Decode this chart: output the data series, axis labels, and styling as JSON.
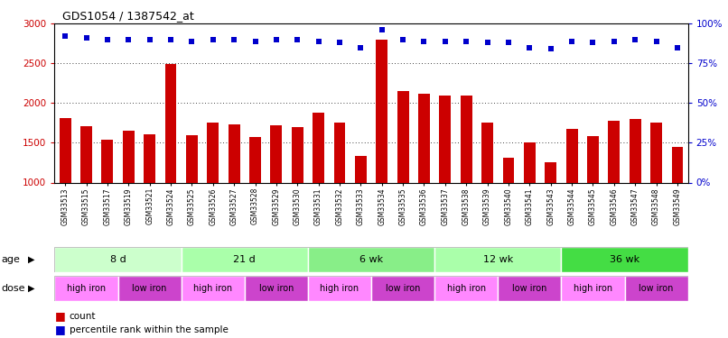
{
  "title": "GDS1054 / 1387542_at",
  "samples": [
    "GSM33513",
    "GSM33515",
    "GSM33517",
    "GSM33519",
    "GSM33521",
    "GSM33524",
    "GSM33525",
    "GSM33526",
    "GSM33527",
    "GSM33528",
    "GSM33529",
    "GSM33530",
    "GSM33531",
    "GSM33532",
    "GSM33533",
    "GSM33534",
    "GSM33535",
    "GSM33536",
    "GSM33537",
    "GSM33538",
    "GSM33539",
    "GSM33540",
    "GSM33541",
    "GSM33543",
    "GSM33544",
    "GSM33545",
    "GSM33546",
    "GSM33547",
    "GSM33548",
    "GSM33549"
  ],
  "counts": [
    1810,
    1710,
    1540,
    1650,
    1610,
    2490,
    1600,
    1750,
    1730,
    1570,
    1720,
    1700,
    1880,
    1750,
    1330,
    2800,
    2150,
    2120,
    2100,
    2090,
    1750,
    1310,
    1510,
    1260,
    1680,
    1590,
    1780,
    1800,
    1760,
    1450
  ],
  "percentile": [
    92,
    91,
    90,
    90,
    90,
    90,
    89,
    90,
    90,
    89,
    90,
    90,
    89,
    88,
    85,
    96,
    90,
    89,
    89,
    89,
    88,
    88,
    85,
    84,
    89,
    88,
    89,
    90,
    89,
    85
  ],
  "bar_color": "#CC0000",
  "dot_color": "#0000CC",
  "ylim_left": [
    1000,
    3000
  ],
  "ylim_right": [
    0,
    100
  ],
  "yticks_left": [
    1000,
    1500,
    2000,
    2500,
    3000
  ],
  "yticks_right": [
    0,
    25,
    50,
    75,
    100
  ],
  "age_groups": [
    {
      "label": "8 d",
      "start": 0,
      "end": 6,
      "color": "#ccffcc"
    },
    {
      "label": "21 d",
      "start": 6,
      "end": 12,
      "color": "#aaffaa"
    },
    {
      "label": "6 wk",
      "start": 12,
      "end": 18,
      "color": "#88ee88"
    },
    {
      "label": "12 wk",
      "start": 18,
      "end": 24,
      "color": "#aaffaa"
    },
    {
      "label": "36 wk",
      "start": 24,
      "end": 30,
      "color": "#44dd44"
    }
  ],
  "dose_groups": [
    {
      "label": "high iron",
      "start": 0,
      "end": 3,
      "color": "#ff88ff"
    },
    {
      "label": "low iron",
      "start": 3,
      "end": 6,
      "color": "#cc44cc"
    },
    {
      "label": "high iron",
      "start": 6,
      "end": 9,
      "color": "#ff88ff"
    },
    {
      "label": "low iron",
      "start": 9,
      "end": 12,
      "color": "#cc44cc"
    },
    {
      "label": "high iron",
      "start": 12,
      "end": 15,
      "color": "#ff88ff"
    },
    {
      "label": "low iron",
      "start": 15,
      "end": 18,
      "color": "#cc44cc"
    },
    {
      "label": "high iron",
      "start": 18,
      "end": 21,
      "color": "#ff88ff"
    },
    {
      "label": "low iron",
      "start": 21,
      "end": 24,
      "color": "#cc44cc"
    },
    {
      "label": "high iron",
      "start": 24,
      "end": 27,
      "color": "#ff88ff"
    },
    {
      "label": "low iron",
      "start": 27,
      "end": 30,
      "color": "#cc44cc"
    }
  ],
  "bg_color": "#ffffff",
  "label_age": "age",
  "label_dose": "dose"
}
